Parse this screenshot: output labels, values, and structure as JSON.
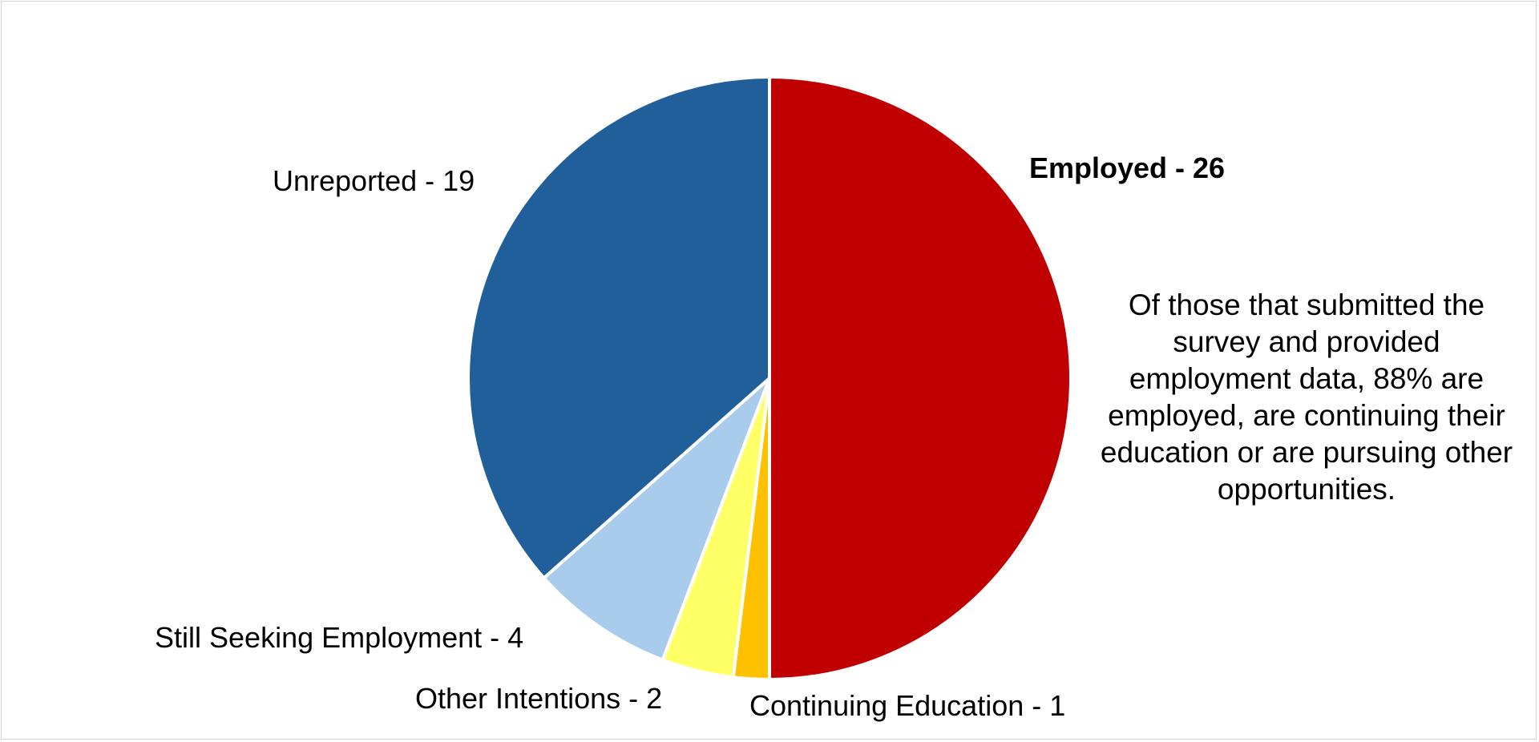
{
  "chart_data": {
    "type": "pie",
    "slices": [
      {
        "label": "Employed - 26",
        "name": "Employed",
        "value": 26,
        "color": "#C00000",
        "bold": true
      },
      {
        "label": "Continuing Education - 1",
        "name": "Continuing Education",
        "value": 1,
        "color": "#FFC000",
        "bold": false
      },
      {
        "label": "Other Intentions - 2",
        "name": "Other Intentions",
        "value": 2,
        "color": "#FFFF66",
        "bold": false
      },
      {
        "label": "Still Seeking Employment - 4",
        "name": "Still Seeking Employment",
        "value": 4,
        "color": "#A9CBEC",
        "bold": false
      },
      {
        "label": "Unreported - 19",
        "name": "Unreported",
        "value": 19,
        "color": "#215F9A",
        "bold": false
      }
    ],
    "annotation": "Of those that submitted the survey and provided employment data, 88% are employed, are continuing their education or are pursuing other opportunities."
  }
}
